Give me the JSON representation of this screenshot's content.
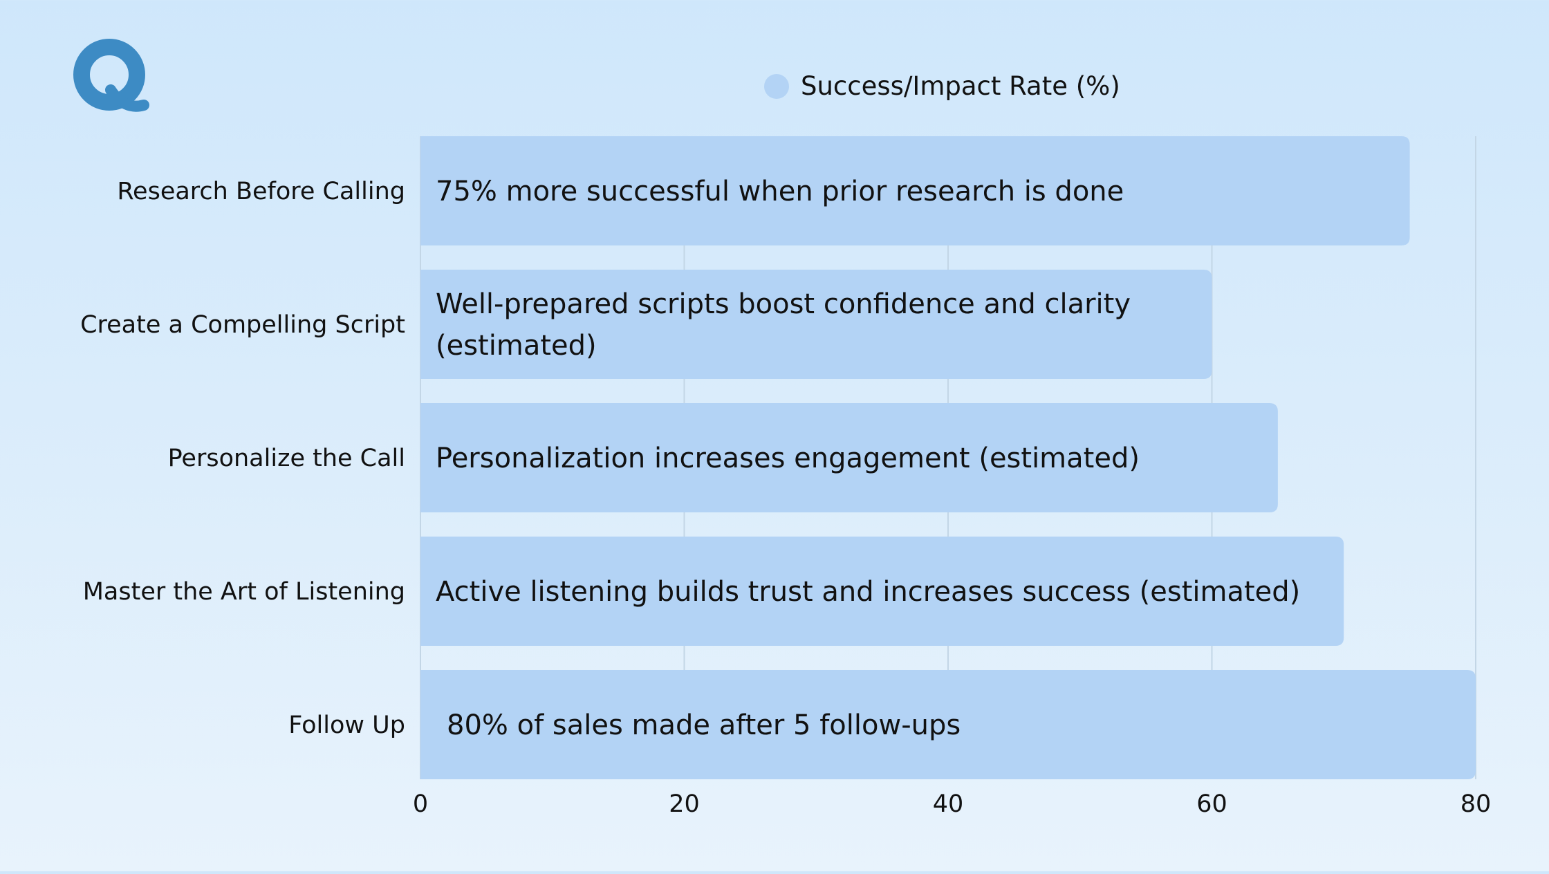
{
  "chart_data": {
    "type": "bar",
    "orientation": "horizontal",
    "categories": [
      "Research Before Calling",
      "Create a Compelling Script",
      "Personalize the Call",
      "Master the Art of Listening",
      "Follow Up"
    ],
    "series": [
      {
        "name": "Success/Impact Rate (%)",
        "values": [
          75,
          60,
          65,
          70,
          80
        ],
        "color": "#b3d3f5"
      }
    ],
    "data_labels": [
      [
        "75% more successful when prior research is done"
      ],
      [
        "Well-prepared scripts boost confidence and clarity",
        "(estimated)"
      ],
      [
        "Personalization increases engagement (estimated)"
      ],
      [
        "Active listening builds trust and increases success (estimated)"
      ],
      [
        "80% of sales made after 5 follow-ups"
      ]
    ],
    "xlim": [
      0,
      80
    ],
    "xticks": [
      0,
      20,
      40,
      60,
      80
    ],
    "xtick_labels": [
      "0",
      "20",
      "40",
      "60",
      "80"
    ],
    "legend_position": "top-center",
    "grid": true,
    "title": "",
    "xlabel": "",
    "ylabel": ""
  },
  "logo": {
    "name": "q-logo-icon",
    "color": "#3d8bc4"
  },
  "colors": {
    "bar": "#b3d3f5",
    "grid": "#c3d6e6",
    "text": "#111111"
  }
}
